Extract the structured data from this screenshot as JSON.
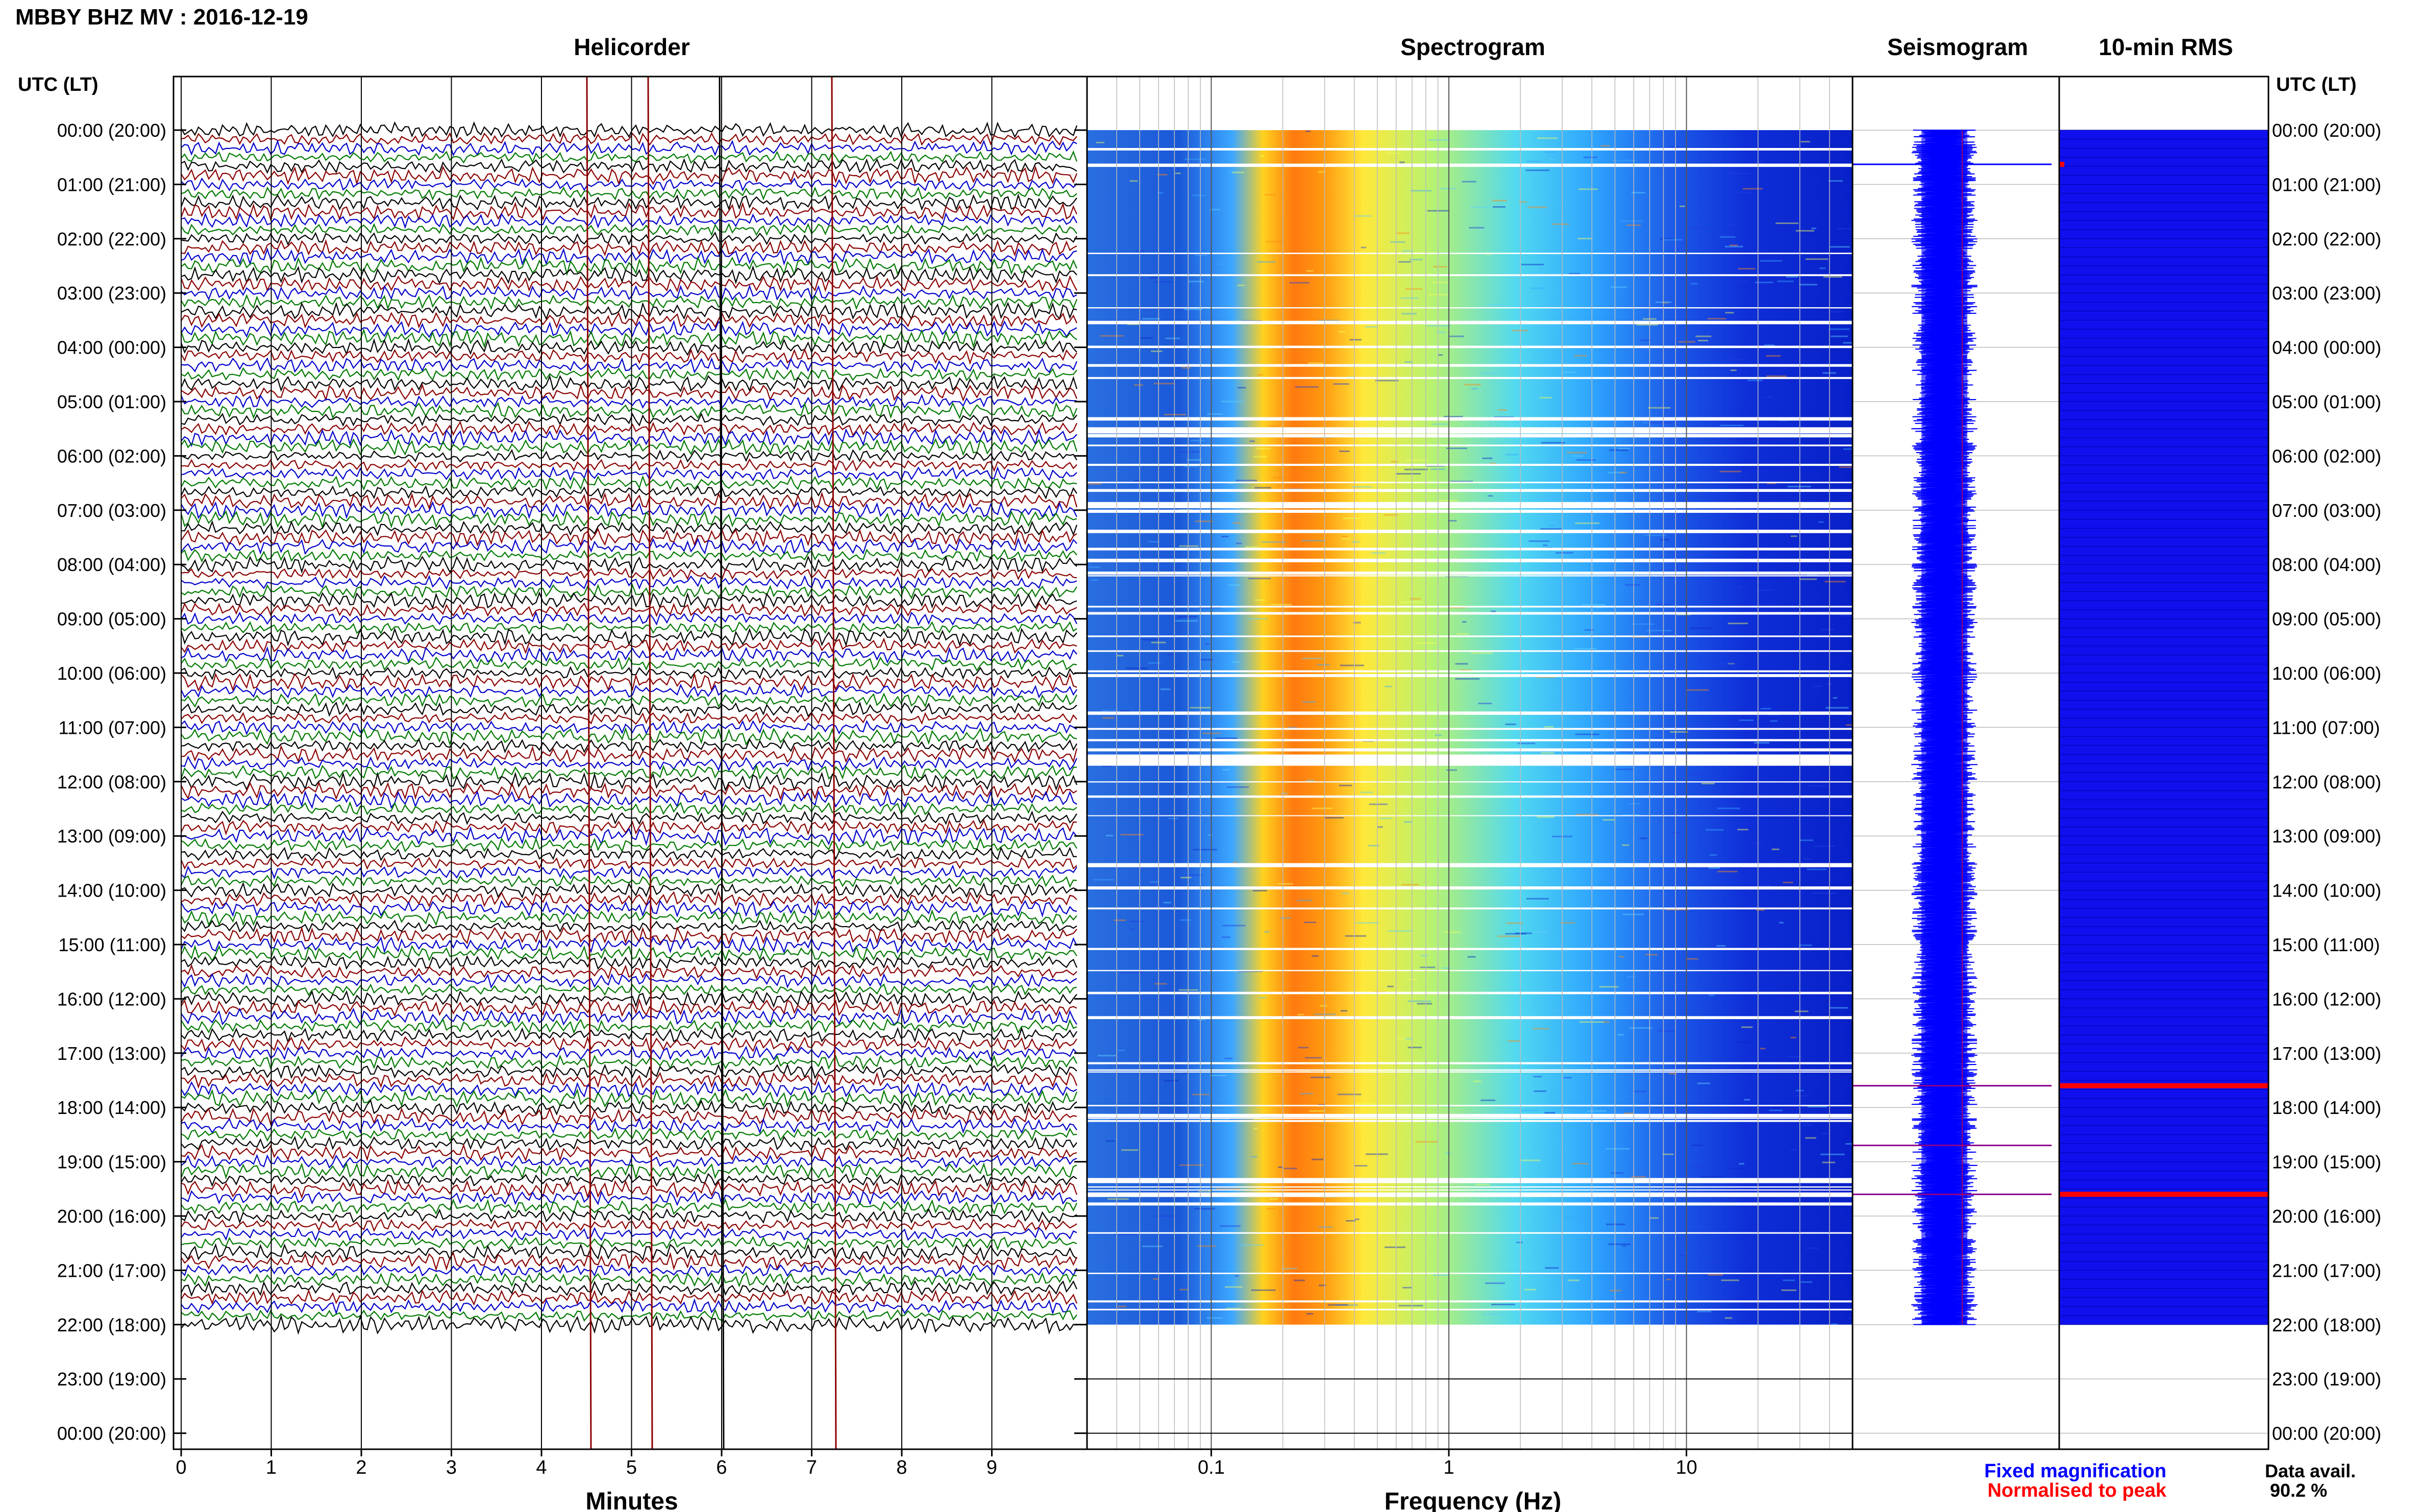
{
  "header": {
    "title": "MBBY BHZ MV : 2016-12-19"
  },
  "panels": {
    "helicorder": "Helicorder",
    "spectrogram": "Spectrogram",
    "seismogram": "Seismogram",
    "rms": "10-min RMS"
  },
  "axes": {
    "time_label": "UTC (LT)",
    "helicorder_xlabel": "Minutes",
    "spectrogram_xlabel": "Frequency (Hz)"
  },
  "chart_data": {
    "type": "heatmap",
    "time_ticks": [
      "00:00 (20:00)",
      "01:00 (21:00)",
      "02:00 (22:00)",
      "03:00 (23:00)",
      "04:00 (00:00)",
      "05:00 (01:00)",
      "06:00 (02:00)",
      "07:00 (03:00)",
      "08:00 (04:00)",
      "09:00 (05:00)",
      "10:00 (06:00)",
      "11:00 (07:00)",
      "12:00 (08:00)",
      "13:00 (09:00)",
      "14:00 (10:00)",
      "15:00 (11:00)",
      "16:00 (12:00)",
      "17:00 (13:00)",
      "18:00 (14:00)",
      "19:00 (15:00)",
      "20:00 (16:00)",
      "21:00 (17:00)",
      "22:00 (18:00)",
      "23:00 (19:00)",
      "00:00 (20:00)"
    ],
    "data_end_hour": 22,
    "minutes_ticks": [
      "0",
      "1",
      "2",
      "3",
      "4",
      "5",
      "6",
      "7",
      "8",
      "9"
    ],
    "minutes_range": [
      0,
      10
    ],
    "frequency_ticks": [
      {
        "value": 0.1,
        "label": "0.1"
      },
      {
        "value": 1,
        "label": "1"
      },
      {
        "value": 10,
        "label": "10"
      }
    ],
    "frequency_range": [
      0.03,
      50
    ],
    "frequency_scale": "log",
    "trace_colors": [
      "#000000",
      "#8b0000",
      "#0000cc",
      "#007a00"
    ],
    "peak_band_hz": [
      0.15,
      0.4
    ],
    "red_rms_hours": [
      17.6,
      19.6
    ],
    "seismogram_colors": {
      "fixed": "#0000ff",
      "normalised": "#ff0000"
    }
  },
  "legend": {
    "fixed": "Fixed magnification",
    "normalised": "Normalised to peak",
    "avail_label": "Data avail.",
    "avail_value": "90.2 %"
  }
}
